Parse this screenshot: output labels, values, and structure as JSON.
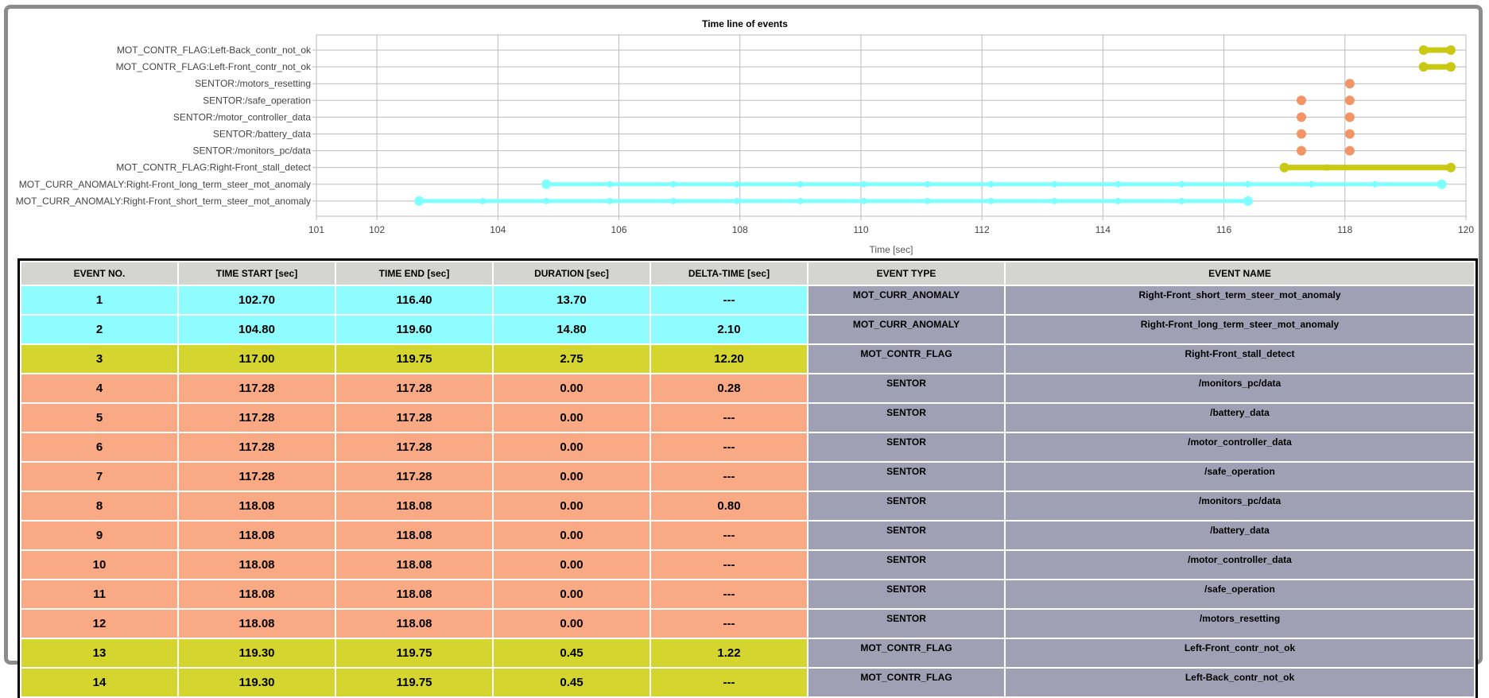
{
  "colors": {
    "MOT_CURR_ANOMALY": "#8ffdfd",
    "MOT_CONTR_FLAG": "#d5d530",
    "SENTOR": "#f9aa85",
    "meta": "#a0a0b4",
    "header": "#d4d4d0",
    "marker_cyan": "#7fffff",
    "marker_yellow": "#c9c914",
    "marker_orange": "#f39466"
  },
  "chart_data": {
    "type": "timeline",
    "title": "Time line of events",
    "xlabel": "Time [sec]",
    "ylabel": "",
    "xlim": [
      101,
      120
    ],
    "xticks": [
      101,
      102,
      104,
      106,
      108,
      110,
      112,
      114,
      116,
      118,
      120
    ],
    "grid": true,
    "rows": [
      "MOT_CONTR_FLAG:Left-Back_contr_not_ok",
      "MOT_CONTR_FLAG:Left-Front_contr_not_ok",
      "SENTOR:/motors_resetting",
      "SENTOR:/safe_operation",
      "SENTOR:/motor_controller_data",
      "SENTOR:/battery_data",
      "SENTOR:/monitors_pc/data",
      "MOT_CONTR_FLAG:Right-Front_stall_detect",
      "MOT_CURR_ANOMALY:Right-Front_long_term_steer_mot_anomaly",
      "MOT_CURR_ANOMALY:Right-Front_short_term_steer_mot_anomaly"
    ],
    "series": [
      {
        "row": 9,
        "type": "MOT_CURR_ANOMALY",
        "start": 102.7,
        "end": 116.4,
        "samples": [
          103.75,
          104.8,
          105.85,
          106.9,
          107.95,
          109.0,
          110.05,
          111.1,
          112.15,
          113.2,
          114.25,
          115.3
        ]
      },
      {
        "row": 8,
        "type": "MOT_CURR_ANOMALY",
        "start": 104.8,
        "end": 119.6,
        "samples": [
          105.85,
          106.9,
          107.95,
          109.0,
          110.05,
          111.1,
          112.15,
          113.2,
          114.25,
          115.3,
          116.4,
          117.45,
          118.5
        ]
      },
      {
        "row": 7,
        "type": "MOT_CONTR_FLAG",
        "start": 117.0,
        "end": 119.75,
        "samples": [
          117.7
        ]
      },
      {
        "row": 6,
        "type": "SENTOR",
        "start": 117.28,
        "end": 117.28,
        "samples": []
      },
      {
        "row": 5,
        "type": "SENTOR",
        "start": 117.28,
        "end": 117.28,
        "samples": []
      },
      {
        "row": 4,
        "type": "SENTOR",
        "start": 117.28,
        "end": 117.28,
        "samples": []
      },
      {
        "row": 3,
        "type": "SENTOR",
        "start": 117.28,
        "end": 117.28,
        "samples": []
      },
      {
        "row": 6,
        "type": "SENTOR",
        "start": 118.08,
        "end": 118.08,
        "samples": []
      },
      {
        "row": 5,
        "type": "SENTOR",
        "start": 118.08,
        "end": 118.08,
        "samples": []
      },
      {
        "row": 4,
        "type": "SENTOR",
        "start": 118.08,
        "end": 118.08,
        "samples": []
      },
      {
        "row": 3,
        "type": "SENTOR",
        "start": 118.08,
        "end": 118.08,
        "samples": []
      },
      {
        "row": 2,
        "type": "SENTOR",
        "start": 118.08,
        "end": 118.08,
        "samples": []
      },
      {
        "row": 1,
        "type": "MOT_CONTR_FLAG",
        "start": 119.3,
        "end": 119.75,
        "samples": []
      },
      {
        "row": 0,
        "type": "MOT_CONTR_FLAG",
        "start": 119.3,
        "end": 119.75,
        "samples": []
      }
    ]
  },
  "table": {
    "headers": [
      "EVENT NO.",
      "TIME START [sec]",
      "TIME END [sec]",
      "DURATION [sec]",
      "DELTA-TIME [sec]",
      "EVENT TYPE",
      "EVENT NAME"
    ],
    "rows": [
      [
        "1",
        "102.70",
        "116.40",
        "13.70",
        "---",
        "MOT_CURR_ANOMALY",
        "Right-Front_short_term_steer_mot_anomaly"
      ],
      [
        "2",
        "104.80",
        "119.60",
        "14.80",
        "2.10",
        "MOT_CURR_ANOMALY",
        "Right-Front_long_term_steer_mot_anomaly"
      ],
      [
        "3",
        "117.00",
        "119.75",
        "2.75",
        "12.20",
        "MOT_CONTR_FLAG",
        "Right-Front_stall_detect"
      ],
      [
        "4",
        "117.28",
        "117.28",
        "0.00",
        "0.28",
        "SENTOR",
        "/monitors_pc/data"
      ],
      [
        "5",
        "117.28",
        "117.28",
        "0.00",
        "---",
        "SENTOR",
        "/battery_data"
      ],
      [
        "6",
        "117.28",
        "117.28",
        "0.00",
        "---",
        "SENTOR",
        "/motor_controller_data"
      ],
      [
        "7",
        "117.28",
        "117.28",
        "0.00",
        "---",
        "SENTOR",
        "/safe_operation"
      ],
      [
        "8",
        "118.08",
        "118.08",
        "0.00",
        "0.80",
        "SENTOR",
        "/monitors_pc/data"
      ],
      [
        "9",
        "118.08",
        "118.08",
        "0.00",
        "---",
        "SENTOR",
        "/battery_data"
      ],
      [
        "10",
        "118.08",
        "118.08",
        "0.00",
        "---",
        "SENTOR",
        "/motor_controller_data"
      ],
      [
        "11",
        "118.08",
        "118.08",
        "0.00",
        "---",
        "SENTOR",
        "/safe_operation"
      ],
      [
        "12",
        "118.08",
        "118.08",
        "0.00",
        "---",
        "SENTOR",
        "/motors_resetting"
      ],
      [
        "13",
        "119.30",
        "119.75",
        "0.45",
        "1.22",
        "MOT_CONTR_FLAG",
        "Left-Front_contr_not_ok"
      ],
      [
        "14",
        "119.30",
        "119.75",
        "0.45",
        "---",
        "MOT_CONTR_FLAG",
        "Left-Back_contr_not_ok"
      ]
    ]
  }
}
